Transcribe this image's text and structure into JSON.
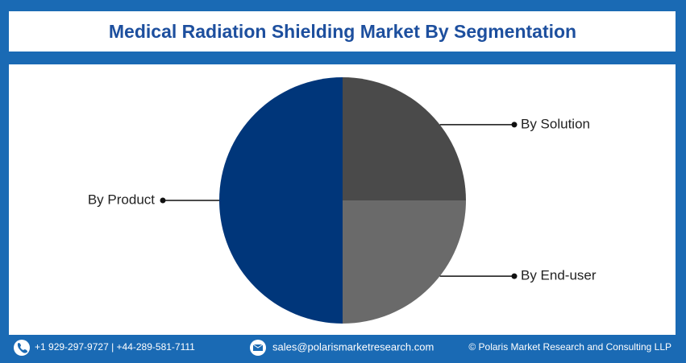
{
  "chart_data": {
    "type": "pie",
    "title": "Medical Radiation Shielding Market By Segmentation",
    "categories": [
      "By Solution",
      "By End-user",
      "By Product"
    ],
    "values": [
      25,
      25,
      50
    ],
    "colors": [
      "#4a4a4a",
      "#6a6a6a",
      "#00367a"
    ]
  },
  "footer": {
    "phone": "+1 929-297-9727 | +44-289-581-7111",
    "email": "sales@polarismarketresearch.com",
    "copyright": "© Polaris Market Research and Consulting LLP"
  }
}
